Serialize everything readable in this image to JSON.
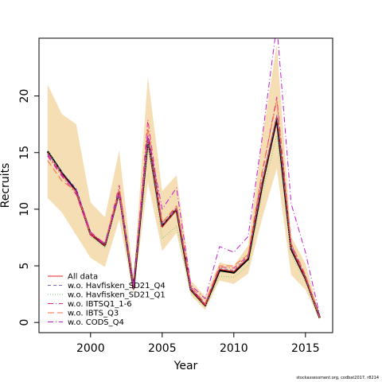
{
  "chart_data": {
    "type": "line",
    "xlabel": "Year",
    "ylabel": "Recruits",
    "xlim": [
      1996.4,
      2016.9
    ],
    "ylim": [
      -0.9,
      25.1
    ],
    "x_ticks": [
      2000,
      2005,
      2010,
      2015
    ],
    "y_ticks": [
      0,
      5,
      10,
      15,
      20
    ],
    "x": [
      1997,
      1998,
      1999,
      2000,
      2001,
      2002,
      2003,
      2004,
      2005,
      2006,
      2007,
      2008,
      2009,
      2010,
      2011,
      2012,
      2013,
      2014,
      2015,
      2016
    ],
    "band": {
      "color": "#f5deb3",
      "upper": [
        21.0,
        18.4,
        17.5,
        10.6,
        9.3,
        15.2,
        3.9,
        21.7,
        11.6,
        13.0,
        3.7,
        2.3,
        5.3,
        5.0,
        6.8,
        16.5,
        24.5,
        7.6,
        5.2,
        0.7
      ],
      "lower": [
        11.0,
        9.7,
        7.7,
        5.7,
        4.9,
        9.1,
        2.4,
        12.4,
        6.3,
        7.9,
        2.4,
        1.1,
        3.7,
        3.4,
        4.3,
        9.3,
        13.6,
        4.2,
        2.9,
        0.2
      ]
    },
    "series": [
      {
        "name": "All data",
        "color": "#000000",
        "width": 2.5,
        "dash": "",
        "values": [
          15.1,
          13.2,
          11.6,
          7.8,
          6.8,
          11.5,
          3.0,
          16.2,
          8.5,
          10.0,
          2.9,
          1.5,
          4.6,
          4.4,
          5.6,
          12.3,
          18.0,
          6.5,
          3.9,
          0.4
        ]
      },
      {
        "name": "All data",
        "color": "#ee2222",
        "width": 1,
        "dash": "",
        "values": [
          15.0,
          13.1,
          11.5,
          7.8,
          6.8,
          11.4,
          3.0,
          16.2,
          8.4,
          10.0,
          2.9,
          1.5,
          4.7,
          4.5,
          5.7,
          12.4,
          18.2,
          6.6,
          3.9,
          0.4
        ]
      },
      {
        "name": "w.o. Havfisken_SD21_Q4",
        "color": "#7b68c8",
        "width": 1,
        "dash": "4,3",
        "values": [
          14.9,
          13.3,
          11.8,
          7.9,
          7.0,
          11.6,
          3.2,
          16.4,
          8.6,
          10.1,
          3.0,
          1.6,
          4.8,
          4.6,
          5.8,
          12.6,
          18.3,
          6.7,
          4.0,
          0.4
        ]
      },
      {
        "name": "w.o. Havfisken_SD21_Q1",
        "color": "#7fc97f",
        "width": 1,
        "dash": "1,2",
        "values": [
          15.2,
          13.0,
          11.3,
          7.6,
          6.6,
          11.2,
          2.9,
          16.0,
          7.4,
          8.5,
          2.7,
          1.4,
          4.1,
          4.0,
          5.0,
          11.5,
          16.5,
          6.0,
          3.6,
          0.4
        ]
      },
      {
        "name": "w.o. IBTSQ1_1-6",
        "color": "#e7298a",
        "width": 1,
        "dash": "7,3,1,3",
        "values": [
          14.7,
          12.9,
          11.3,
          7.7,
          6.9,
          12.1,
          3.0,
          17.9,
          8.8,
          10.2,
          3.1,
          1.6,
          4.9,
          4.8,
          5.9,
          13.3,
          19.9,
          6.9,
          4.1,
          0.4
        ]
      },
      {
        "name": "w.o. IBTS_Q3",
        "color": "#f46d43",
        "width": 1,
        "dash": "8,4",
        "values": [
          14.3,
          12.5,
          11.6,
          7.9,
          7.0,
          11.8,
          3.2,
          17.2,
          8.8,
          10.3,
          3.2,
          1.7,
          5.0,
          5.0,
          6.0,
          13.5,
          19.6,
          7.0,
          4.2,
          0.4
        ]
      },
      {
        "name": "w.o. CODS_Q4",
        "color": "#c51bd0",
        "width": 1,
        "dash": "7,3,1,3",
        "values": [
          14.8,
          13.0,
          11.6,
          8.0,
          6.9,
          11.3,
          3.1,
          16.6,
          10.0,
          11.9,
          3.3,
          2.1,
          6.7,
          6.2,
          7.6,
          16.5,
          26.3,
          10.5,
          6.2,
          0.6
        ]
      }
    ],
    "legend": {
      "placement": "bottom-left",
      "entries": [
        {
          "label": "All data",
          "color": "#ee2222",
          "dash": ""
        },
        {
          "label": "w.o. Havfisken_SD21_Q4",
          "color": "#7b68c8",
          "dash": "4,3"
        },
        {
          "label": "w.o. Havfisken_SD21_Q1",
          "color": "#7fc97f",
          "dash": "1,2"
        },
        {
          "label": "w.o. IBTSQ1_1-6",
          "color": "#e7298a",
          "dash": "7,3,1,3"
        },
        {
          "label": "w.o. IBTS_Q3",
          "color": "#f46d43",
          "dash": "8,4"
        },
        {
          "label": "w.o. CODS_Q4",
          "color": "#c51bd0",
          "dash": "7,3,1,3"
        }
      ]
    }
  },
  "caption": "stockassessment.org, codbat2017, r8214"
}
